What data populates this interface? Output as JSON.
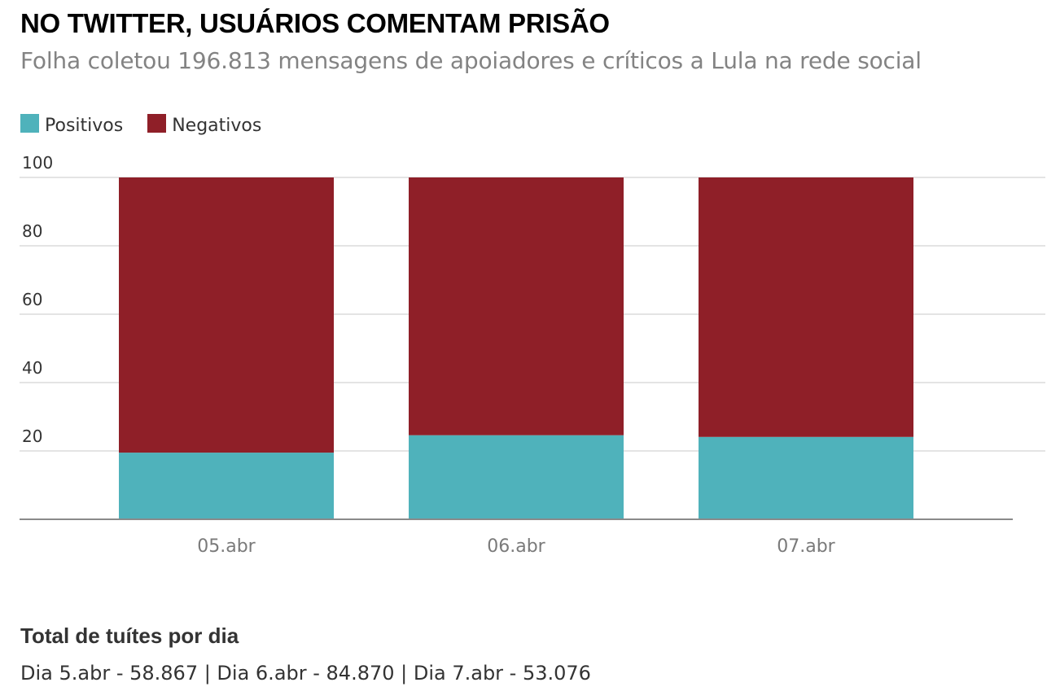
{
  "title": "NO TWITTER, USUÁRIOS COMENTAM PRISÃO",
  "subtitle": "Folha coletou 196.813 mensagens de apoiadores e críticos a Lula na rede social",
  "footer": {
    "heading": "Total de tuítes por dia",
    "text": "Dia 5.abr - 58.867 | Dia 6.abr - 84.870 | Dia 7.abr - 53.076"
  },
  "chart_data": {
    "type": "bar",
    "stacked": true,
    "categories": [
      "05.abr",
      "06.abr",
      "07.abr"
    ],
    "series": [
      {
        "name": "Positivos",
        "values": [
          19.5,
          24.6,
          24.1
        ],
        "color": "#4fb2bb"
      },
      {
        "name": "Negativos",
        "values": [
          80.5,
          75.4,
          75.9
        ],
        "color": "#8f1f28"
      }
    ],
    "title": "",
    "xlabel": "",
    "ylabel": "",
    "ylim": [
      0,
      100
    ],
    "yticks": [
      20,
      40,
      60,
      80,
      100
    ],
    "grid": true,
    "legend": "top-left"
  }
}
